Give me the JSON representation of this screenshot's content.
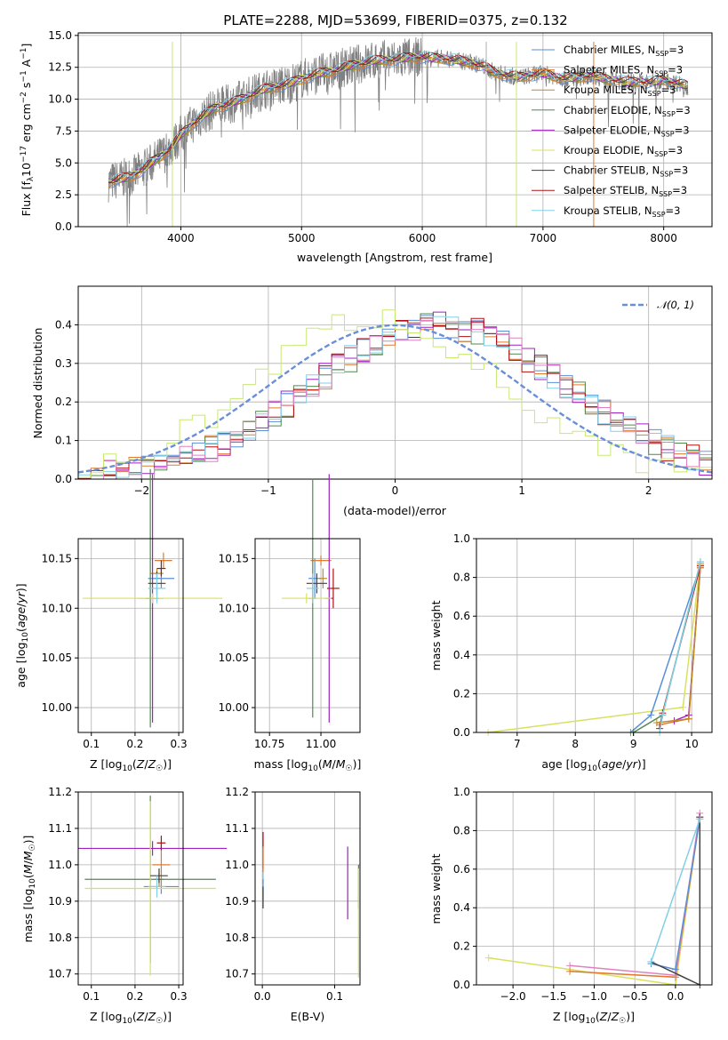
{
  "colors": {
    "chabrier_miles": "#5a8fd8",
    "salpeter_miles": "#e07a30",
    "kroupa_miles": "#c08a28",
    "chabrier_elodie": "#4f8a4f",
    "salpeter_elodie": "#a020c0",
    "kroupa_elodie": "#d8e060",
    "chabrier_stelib": "#404040",
    "salpeter_stelib": "#b01010",
    "kroupa_stelib": "#80d0e8",
    "observed": "#7f7f7f",
    "normal": "#6a8fd8",
    "hist_pink": "#e080c0",
    "hist_lime": "#c8e870"
  },
  "chart_data": [
    {
      "id": "spectrum",
      "type": "line",
      "title": "PLATE=2288, MJD=53699, FIBERID=0375, z=0.132",
      "xlabel": "wavelength [Angstrom, rest frame]",
      "ylabel_parts": [
        "Flux [f",
        "λ",
        "10",
        "−17",
        " erg cm",
        "−2",
        " s",
        "−1",
        " A",
        "−1",
        "]"
      ],
      "xlim": [
        3150,
        8400
      ],
      "ylim": [
        0,
        15.2
      ],
      "xticks": [
        "4000",
        "5000",
        "6000",
        "7000",
        "8000"
      ],
      "yticks": [
        "0.0",
        "2.5",
        "5.0",
        "7.5",
        "10.0",
        "12.5",
        "15.0"
      ],
      "legend": [
        {
          "base": "Chabrier MILES, N",
          "sub": "SSP",
          "tail": "=3"
        },
        {
          "base": "Salpeter MILES, N",
          "sub": "SSP",
          "tail": "=3"
        },
        {
          "base": "Kroupa MILES, N",
          "sub": "SSP",
          "tail": "=3"
        },
        {
          "base": "Chabrier ELODIE, N",
          "sub": "SSP",
          "tail": "=3"
        },
        {
          "base": "Salpeter ELODIE, N",
          "sub": "SSP",
          "tail": "=3"
        },
        {
          "base": "Kroupa ELODIE, N",
          "sub": "SSP",
          "tail": "=3"
        },
        {
          "base": "Chabrier STELIB, N",
          "sub": "SSP",
          "tail": "=3"
        },
        {
          "base": "Salpeter STELIB, N",
          "sub": "SSP",
          "tail": "=3"
        },
        {
          "base": "Kroupa STELIB, N",
          "sub": "SSP",
          "tail": "=3"
        }
      ],
      "legend_placement": "upper right",
      "grid": true,
      "continuum": {
        "x": [
          3400,
          3500,
          3600,
          3700,
          3800,
          3900,
          4000,
          4100,
          4200,
          4300,
          4400,
          4500,
          4600,
          4700,
          4800,
          4900,
          5000,
          5100,
          5200,
          5300,
          5400,
          5500,
          5600,
          5700,
          5800,
          5900,
          6000,
          6100,
          6200,
          6300,
          6400,
          6500,
          6600,
          6700,
          6800,
          6900,
          7000,
          7100,
          7200,
          7300,
          7400,
          7500,
          7600,
          7700,
          7800,
          7900,
          8000,
          8100,
          8200
        ],
        "y": [
          3.5,
          3.7,
          4.0,
          4.6,
          5.3,
          6.0,
          7.2,
          8.1,
          8.8,
          9.4,
          9.6,
          10.0,
          10.4,
          10.8,
          11.0,
          11.2,
          11.6,
          11.9,
          12.1,
          12.3,
          12.6,
          12.8,
          13.0,
          13.1,
          13.1,
          13.3,
          13.3,
          13.2,
          13.2,
          13.0,
          12.9,
          12.6,
          12.1,
          11.9,
          11.7,
          11.9,
          12.0,
          11.8,
          11.6,
          11.7,
          11.9,
          11.6,
          11.5,
          11.3,
          11.4,
          11.3,
          11.5,
          11.3,
          11.0
        ]
      }
    },
    {
      "id": "residual_histogram",
      "type": "line",
      "xlabel": "(data-model)/error",
      "ylabel": "Normed distribution",
      "xlim": [
        -2.5,
        2.5
      ],
      "ylim": [
        0,
        0.5
      ],
      "xticks": [
        "−2",
        "−1",
        "0",
        "1",
        "2"
      ],
      "yticks": [
        "0.0",
        "0.1",
        "0.2",
        "0.3",
        "0.4"
      ],
      "legend_label": "𝒩(0, 1)",
      "legend_placement": "upper right",
      "grid": true
    },
    {
      "id": "age_vs_Z",
      "type": "scatter",
      "xlabel": "Z [log10(Z/Z☉)]",
      "ylabel": "age  [log10(age/yr)]",
      "xlim": [
        0.07,
        0.31
      ],
      "ylim": [
        9.975,
        10.17
      ],
      "xticks": [
        "0.1",
        "0.2",
        "0.3"
      ],
      "yticks": [
        "10.00",
        "10.05",
        "10.10",
        "10.15"
      ],
      "grid": true,
      "points": [
        {
          "model": "chabrier_miles",
          "x": 0.26,
          "y": 10.13,
          "xerr": 0.03,
          "yerr": 0.01
        },
        {
          "model": "salpeter_miles",
          "x": 0.265,
          "y": 10.148,
          "xerr": 0.02,
          "yerr": 0.008
        },
        {
          "model": "kroupa_miles",
          "x": 0.25,
          "y": 10.135,
          "xerr": 0.015,
          "yerr": 0.005
        },
        {
          "model": "chabrier_elodie",
          "x": 0.235,
          "y": 10.11,
          "xerr": 0.03,
          "yerr": 0.13
        },
        {
          "model": "salpeter_elodie",
          "x": 0.24,
          "y": 10.11,
          "xerr": 0.015,
          "yerr": 0.125
        },
        {
          "model": "kroupa_elodie",
          "x": 0.24,
          "y": 10.11,
          "xerr": 0.16,
          "yerr": 0.005
        },
        {
          "model": "chabrier_stelib",
          "x": 0.25,
          "y": 10.125,
          "xerr": 0.02,
          "yerr": 0.012
        },
        {
          "model": "salpeter_stelib",
          "x": 0.26,
          "y": 10.14,
          "xerr": 0.01,
          "yerr": 0.008
        },
        {
          "model": "kroupa_stelib",
          "x": 0.25,
          "y": 10.12,
          "xerr": 0.02,
          "yerr": 0.015
        }
      ]
    },
    {
      "id": "age_vs_mass",
      "type": "scatter",
      "xlabel": "mass [log10(M/M☉)]",
      "xlim": [
        10.68,
        11.19
      ],
      "ylim": [
        9.975,
        10.17
      ],
      "xticks": [
        "10.75",
        "11.00"
      ],
      "yticks": [
        "10.00",
        "10.05",
        "10.10",
        "10.15"
      ],
      "grid": true,
      "points": [
        {
          "model": "chabrier_miles",
          "x": 10.97,
          "y": 10.13,
          "xerr": 0.03,
          "yerr": 0.02
        },
        {
          "model": "salpeter_miles",
          "x": 11.0,
          "y": 10.148,
          "xerr": 0.05,
          "yerr": 0.005
        },
        {
          "model": "kroupa_miles",
          "x": 11.01,
          "y": 10.13,
          "xerr": 0.02,
          "yerr": 0.01
        },
        {
          "model": "chabrier_elodie",
          "x": 10.96,
          "y": 10.11,
          "xerr": 0.02,
          "yerr": 0.12
        },
        {
          "model": "salpeter_elodie",
          "x": 11.04,
          "y": 10.11,
          "xerr": 0.02,
          "yerr": 0.125
        },
        {
          "model": "kroupa_elodie",
          "x": 10.93,
          "y": 10.11,
          "xerr": 0.12,
          "yerr": 0.005
        },
        {
          "model": "chabrier_stelib",
          "x": 10.98,
          "y": 10.125,
          "xerr": 0.05,
          "yerr": 0.01
        },
        {
          "model": "salpeter_stelib",
          "x": 11.06,
          "y": 10.12,
          "xerr": 0.03,
          "yerr": 0.02
        },
        {
          "model": "kroupa_stelib",
          "x": 10.96,
          "y": 10.12,
          "xerr": 0.03,
          "yerr": 0.015
        }
      ]
    },
    {
      "id": "mass_weight_vs_age",
      "type": "line",
      "xlabel": "age  [log10(age/yr)]",
      "ylabel": "mass weight",
      "xlim": [
        6.3,
        10.35
      ],
      "ylim": [
        0,
        1.0
      ],
      "xticks": [
        "7",
        "8",
        "9",
        "10"
      ],
      "yticks": [
        "0.0",
        "0.2",
        "0.4",
        "0.6",
        "0.8",
        "1.0"
      ],
      "grid": true
    },
    {
      "id": "mass_vs_Z",
      "type": "scatter",
      "xlabel": "Z [log10(Z/Z☉)]",
      "ylabel": "mass [log10(M/M☉)]",
      "xlim": [
        0.07,
        0.31
      ],
      "ylim": [
        10.67,
        11.2
      ],
      "xticks": [
        "0.1",
        "0.2",
        "0.3"
      ],
      "yticks": [
        "10.7",
        "10.8",
        "10.9",
        "11.0",
        "11.1",
        "11.2"
      ],
      "grid": true,
      "points": [
        {
          "model": "chabrier_miles",
          "x": 0.26,
          "y": 10.94,
          "xerr": 0.04,
          "yerr": 0.02
        },
        {
          "model": "salpeter_miles",
          "x": 0.26,
          "y": 11.0,
          "xerr": 0.02,
          "yerr": 0.06
        },
        {
          "model": "kroupa_miles",
          "x": 0.255,
          "y": 10.96,
          "xerr": 0.01,
          "yerr": 0.02
        },
        {
          "model": "chabrier_elodie",
          "x": 0.235,
          "y": 10.96,
          "xerr": 0.15,
          "yerr": 0.23
        },
        {
          "model": "salpeter_elodie",
          "x": 0.24,
          "y": 11.045,
          "xerr": 0.17,
          "yerr": 0.02
        },
        {
          "model": "kroupa_elodie",
          "x": 0.235,
          "y": 10.935,
          "xerr": 0.15,
          "yerr": 0.24
        },
        {
          "model": "chabrier_stelib",
          "x": 0.255,
          "y": 10.97,
          "xerr": 0.02,
          "yerr": 0.02
        },
        {
          "model": "salpeter_stelib",
          "x": 0.26,
          "y": 11.06,
          "xerr": 0.01,
          "yerr": 0.02
        },
        {
          "model": "kroupa_stelib",
          "x": 0.25,
          "y": 10.94,
          "xerr": 0.02,
          "yerr": 0.03
        }
      ]
    },
    {
      "id": "mass_vs_ebv",
      "type": "scatter",
      "xlabel": "E(B-V)",
      "xlim": [
        -0.01,
        0.135
      ],
      "ylim": [
        10.67,
        11.2
      ],
      "xticks": [
        "0.0",
        "0.1"
      ],
      "yticks": [
        "10.7",
        "10.8",
        "10.9",
        "11.0",
        "11.1",
        "11.2"
      ],
      "grid": true,
      "points": [
        {
          "model": "salpeter_elodie",
          "x": 0.118,
          "y": 10.95,
          "xerr": 0.0,
          "yerr": 0.1
        },
        {
          "model": "chabrier_elodie",
          "x": 0.133,
          "y": 10.94,
          "xerr": 0.0,
          "yerr": 0.06
        },
        {
          "model": "kroupa_elodie",
          "x": 0.133,
          "y": 10.84,
          "xerr": 0.0,
          "yerr": 0.15
        },
        {
          "model": "salpeter_stelib",
          "x": 0.001,
          "y": 11.04,
          "xerr": 0.0,
          "yerr": 0.05
        },
        {
          "model": "salpeter_miles",
          "x": 0.001,
          "y": 11.0,
          "xerr": 0.0,
          "yerr": 0.05
        },
        {
          "model": "kroupa_stelib",
          "x": 0.001,
          "y": 10.94,
          "xerr": 0.0,
          "yerr": 0.04
        },
        {
          "model": "chabrier_miles",
          "x": 0.001,
          "y": 10.93,
          "xerr": 0.0,
          "yerr": 0.03
        },
        {
          "model": "chabrier_stelib",
          "x": 0.001,
          "y": 10.91,
          "xerr": 0.0,
          "yerr": 0.03
        }
      ]
    },
    {
      "id": "mass_weight_vs_Z",
      "type": "line",
      "xlabel": "Z [log10(Z/Z☉)]",
      "ylabel": "mass weight",
      "xlim": [
        -2.45,
        0.45
      ],
      "ylim": [
        0,
        1.0
      ],
      "xticks": [
        "−2.0",
        "−1.5",
        "−1.0",
        "−0.5",
        "0.0"
      ],
      "yticks": [
        "0.0",
        "0.2",
        "0.4",
        "0.6",
        "0.8",
        "1.0"
      ],
      "grid": true
    }
  ]
}
